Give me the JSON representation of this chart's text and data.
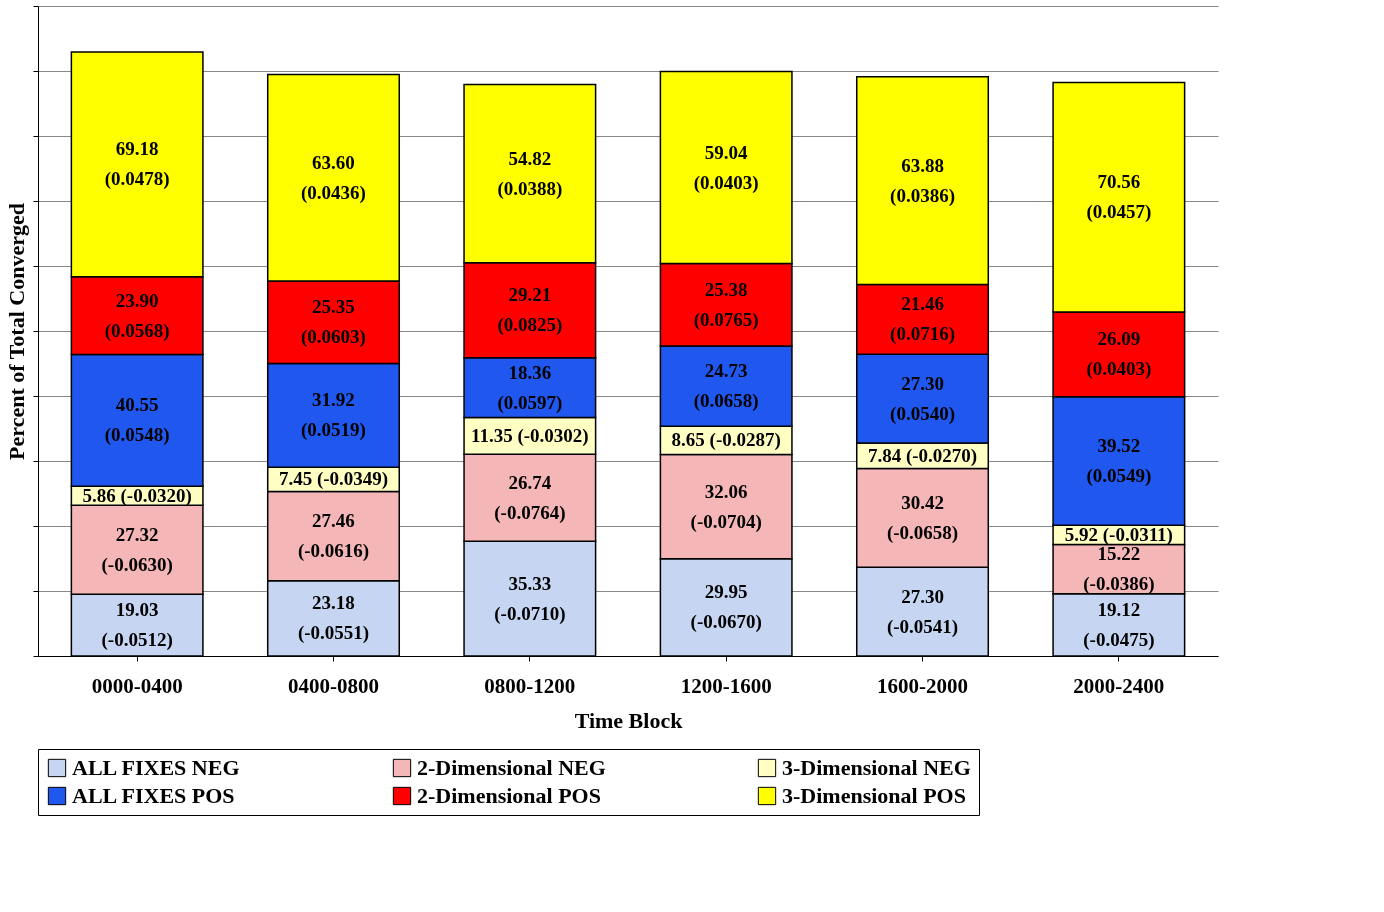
{
  "chart_data": {
    "type": "bar",
    "stacked": true,
    "xlabel": "Time Block",
    "ylabel": "Percent of Total Converged",
    "categories": [
      "0000-0400",
      "0400-0800",
      "0800-1200",
      "1200-1600",
      "1600-2000",
      "2000-2400"
    ],
    "ylim": [
      0,
      200
    ],
    "yticks": [
      {
        "value": 0,
        "label": null
      },
      {
        "value": 20,
        "label": null
      },
      {
        "value": 40,
        "label": null
      },
      {
        "value": 60,
        "label": null
      },
      {
        "value": 80,
        "label": null
      },
      {
        "value": 100,
        "label": null
      },
      {
        "value": 120,
        "label": null
      },
      {
        "value": 140,
        "label": null
      },
      {
        "value": 160,
        "label": null
      },
      {
        "value": 180,
        "label": null
      },
      {
        "value": 200,
        "label": null
      }
    ],
    "tick_labels": "x",
    "grid": "y",
    "legend": "bottom",
    "series": [
      {
        "name": "ALL FIXES NEG",
        "color": "#c6d6f2",
        "values": [
          19.03,
          23.18,
          35.33,
          29.95,
          27.3,
          19.12
        ],
        "value_labels": [
          "19.03\n(-0.0512)",
          "23.18\n(-0.0551)",
          "35.33\n(-0.0710)",
          "29.95\n(-0.0670)",
          "27.30\n(-0.0541)",
          "19.12\n(-0.0475)"
        ]
      },
      {
        "name": "2-Dimensional NEG",
        "color": "#f4b6b6",
        "values": [
          27.32,
          27.46,
          26.74,
          32.06,
          30.42,
          15.22
        ],
        "value_labels": [
          "27.32\n(-0.0630)",
          "27.46\n(-0.0616)",
          "26.74\n(-0.0764)",
          "32.06\n(-0.0704)",
          "30.42\n(-0.0658)",
          "15.22\n(-0.0386)"
        ]
      },
      {
        "name": "3-Dimensional NEG",
        "color": "#ffffc4",
        "values": [
          5.86,
          7.45,
          11.35,
          8.65,
          7.84,
          5.92
        ],
        "value_labels": [
          "5.86 (-0.0320)",
          "7.45 (-0.0349)",
          "11.35 (-0.0302)",
          "8.65 (-0.0287)",
          "7.84 (-0.0270)",
          "5.92 (-0.0311)"
        ]
      },
      {
        "name": "ALL FIXES POS",
        "color": "#1f57ef",
        "values": [
          40.55,
          31.92,
          18.36,
          24.73,
          27.3,
          39.52
        ],
        "value_labels": [
          "40.55\n(0.0548)",
          "31.92\n(0.0519)",
          "18.36\n(0.0597)",
          "24.73\n(0.0658)",
          "27.30\n(0.0540)",
          "39.52\n(0.0549)"
        ]
      },
      {
        "name": "2-Dimensional POS",
        "color": "#ff0000",
        "values": [
          23.9,
          25.35,
          29.21,
          25.38,
          21.46,
          26.09
        ],
        "value_labels": [
          "23.90\n(0.0568)",
          "25.35\n(0.0603)",
          "29.21\n(0.0825)",
          "25.38\n(0.0765)",
          "21.46\n(0.0716)",
          "26.09\n(0.0403)"
        ]
      },
      {
        "name": "3-Dimensional POS",
        "color": "#ffff00",
        "values": [
          69.18,
          63.6,
          54.82,
          59.04,
          63.88,
          70.56
        ],
        "value_labels": [
          "69.18\n(0.0478)",
          "63.60\n(0.0436)",
          "54.82\n(0.0388)",
          "59.04\n(0.0403)",
          "63.88\n(0.0386)",
          "70.56\n(0.0457)"
        ]
      }
    ]
  }
}
